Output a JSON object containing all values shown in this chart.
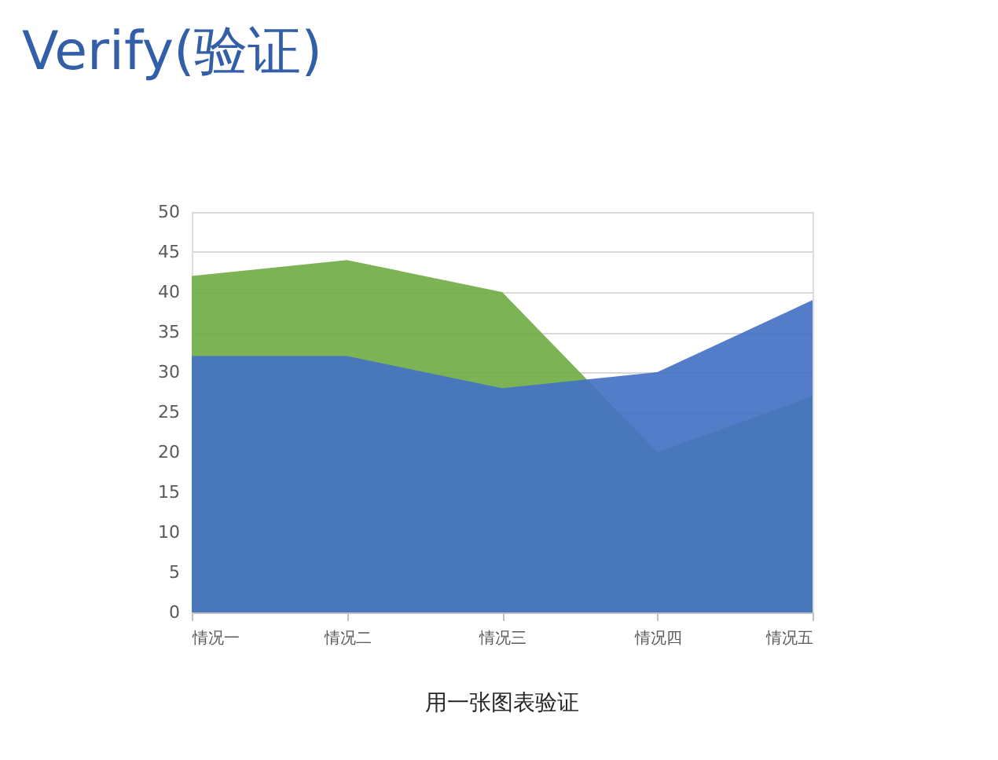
{
  "chart_data": {
    "type": "area",
    "title": "Verify(验证)",
    "categories": [
      "情况一",
      "情况二",
      "情况三",
      "情况四",
      "情况五"
    ],
    "series": [
      {
        "color": "#70ad47",
        "values": [
          42,
          44,
          40,
          20,
          27
        ]
      },
      {
        "color": "#4472c4",
        "values": [
          32,
          32,
          28,
          30,
          39
        ]
      }
    ],
    "ylim": [
      0,
      50
    ],
    "yticks": [
      0,
      5,
      10,
      15,
      20,
      25,
      30,
      35,
      40,
      45,
      50
    ],
    "grid": "y",
    "annotations": [
      "用一张图表验证"
    ]
  }
}
